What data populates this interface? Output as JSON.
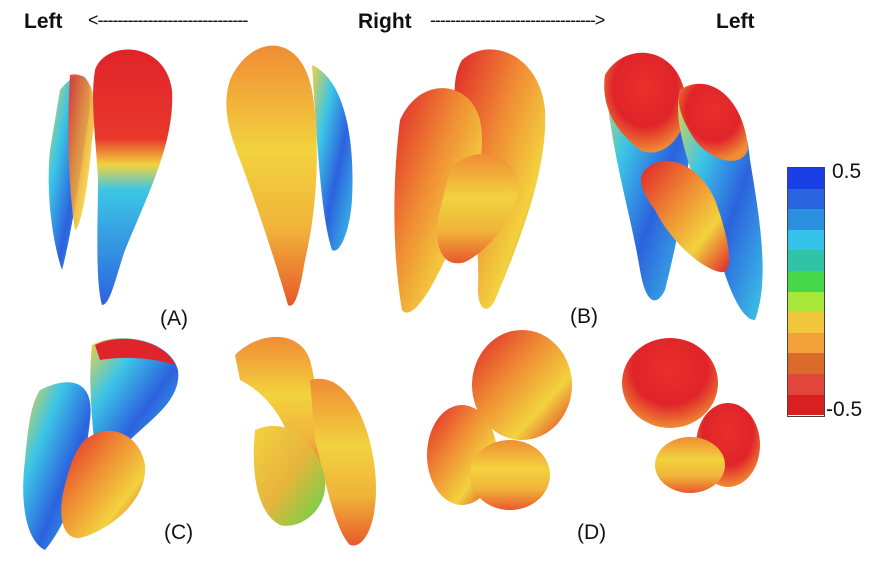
{
  "header": {
    "left_label": "Left",
    "right_label": "Right",
    "left_label_2": "Left",
    "arrow_left": "<------------------------------",
    "arrow_right": "--------------------------------->"
  },
  "panels": [
    "(A)",
    "(B)",
    "(C)",
    "(D)"
  ],
  "colorbar": {
    "max_label": "0.5",
    "min_label": "-0.5",
    "colors": [
      "#1a3fe6",
      "#2a63e0",
      "#2b8fe0",
      "#33c3ea",
      "#2fc4a8",
      "#46d84a",
      "#a8e83a",
      "#f0c63a",
      "#f2a23a",
      "#dc6a2a",
      "#e2463a",
      "#d82020"
    ]
  },
  "palette": {
    "red": "#e0242a",
    "orange": "#f08c34",
    "yellow": "#f2d23e",
    "green": "#5cd64a",
    "cyan": "#3cc6e6",
    "blue": "#2c62de"
  }
}
